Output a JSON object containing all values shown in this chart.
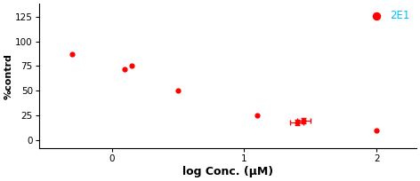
{
  "x_data": [
    -0.3,
    0.1,
    0.15,
    0.5,
    1.1,
    1.4,
    1.45,
    2.0
  ],
  "y_data": [
    87,
    72,
    75,
    50,
    25,
    18,
    20,
    10
  ],
  "x_err": [
    null,
    null,
    null,
    null,
    null,
    0.05,
    0.05,
    null
  ],
  "y_err": [
    null,
    null,
    null,
    null,
    null,
    2.5,
    2.5,
    null
  ],
  "color": "#FF0000",
  "xlabel": "log Conc. (μM)",
  "ylabel": "%contrd",
  "yticks": [
    0,
    25,
    50,
    75,
    100,
    125
  ],
  "xticks": [
    0,
    1,
    2
  ],
  "xlim": [
    -0.55,
    2.3
  ],
  "ylim": [
    -8,
    138
  ],
  "legend_label": "2E1",
  "legend_marker_color": "#FF0000",
  "figsize": [
    4.72,
    2.04
  ],
  "dpi": 100
}
